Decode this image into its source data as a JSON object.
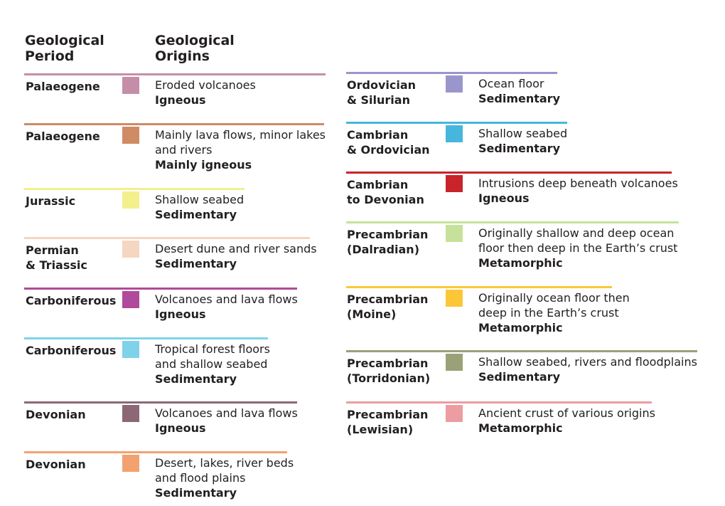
{
  "headers": {
    "period_line1": "Geological",
    "period_line2": "Period",
    "origins_line1": "Geological",
    "origins_line2": "Origins"
  },
  "left_column": [
    {
      "period": [
        "Palaeogene"
      ],
      "color": "#c48ea9",
      "description": [
        "Eroded volcanoes"
      ],
      "type": "Igneous"
    },
    {
      "period": [
        "Palaeogene"
      ],
      "color": "#d08a64",
      "description": [
        "Mainly lava flows, minor lakes",
        "and rivers"
      ],
      "type": "Mainly igneous"
    },
    {
      "period": [
        "Jurassic"
      ],
      "color": "#f3f08e",
      "description": [
        "Shallow seabed"
      ],
      "type": "Sedimentary"
    },
    {
      "period": [
        "Permian",
        "& Triassic"
      ],
      "color": "#f4d6c1",
      "description": [
        "Desert dune and river sands"
      ],
      "type": "Sedimentary"
    },
    {
      "period": [
        "Carboniferous"
      ],
      "color": "#b04a9a",
      "description": [
        "Volcanoes and lava flows"
      ],
      "type": "Igneous"
    },
    {
      "period": [
        "Carboniferous"
      ],
      "color": "#7fd2ea",
      "description": [
        "Tropical forest floors",
        "and shallow seabed"
      ],
      "type": "Sedimentary"
    },
    {
      "period": [
        "Devonian"
      ],
      "color": "#8c6876",
      "description": [
        "Volcanoes and lava flows"
      ],
      "type": "Igneous"
    },
    {
      "period": [
        "Devonian"
      ],
      "color": "#f3a26f",
      "description": [
        "Desert, lakes, river beds",
        "and flood plains"
      ],
      "type": "Sedimentary"
    }
  ],
  "right_column": [
    {
      "period": [
        "Ordovician",
        "& Silurian"
      ],
      "color": "#9a96cc",
      "description": [
        "Ocean floor"
      ],
      "type": "Sedimentary"
    },
    {
      "period": [
        "Cambrian",
        "& Ordovician"
      ],
      "color": "#47b6dc",
      "description": [
        "Shallow seabed"
      ],
      "type": "Sedimentary"
    },
    {
      "period": [
        "Cambrian",
        "to Devonian"
      ],
      "color": "#c8242b",
      "description": [
        "Intrusions deep beneath volcanoes"
      ],
      "type": "Igneous"
    },
    {
      "period": [
        "Precambrian",
        "(Dalradian)"
      ],
      "color": "#c6e29a",
      "description": [
        "Originally shallow and deep ocean",
        "floor then deep in the Earth’s crust"
      ],
      "type": "Metamorphic"
    },
    {
      "period": [
        "Precambrian",
        "(Moine)"
      ],
      "color": "#fcc737",
      "description": [
        "Originally ocean floor then",
        "deep in the Earth’s crust"
      ],
      "type": "Metamorphic"
    },
    {
      "period": [
        "Precambrian",
        "(Torridonian)"
      ],
      "color": "#9aa177",
      "description": [
        "Shallow seabed, rivers and floodplains"
      ],
      "type": "Sedimentary"
    },
    {
      "period": [
        "Precambrian",
        "(Lewisian)"
      ],
      "color": "#ec9da1",
      "description": [
        "Ancient crust of various origins"
      ],
      "type": "Metamorphic"
    }
  ]
}
